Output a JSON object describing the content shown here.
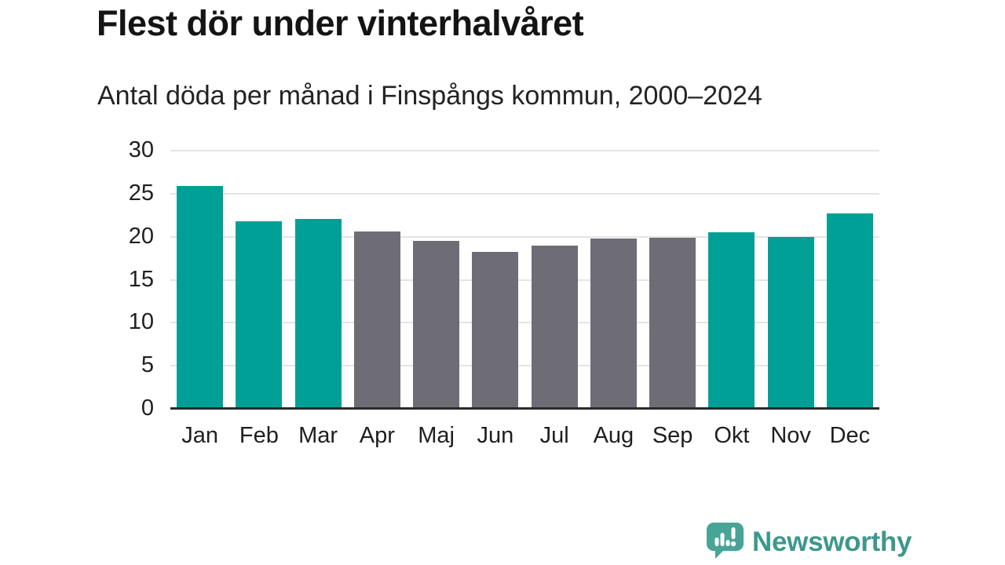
{
  "chart_data": {
    "type": "bar",
    "title": "Flest dör under vinterhalvåret",
    "subtitle": "Antal döda per månad i Finspångs kommun, 2000–2024",
    "categories": [
      "Jan",
      "Feb",
      "Mar",
      "Apr",
      "Maj",
      "Jun",
      "Jul",
      "Aug",
      "Sep",
      "Okt",
      "Nov",
      "Dec"
    ],
    "values": [
      25.9,
      21.8,
      22.1,
      20.6,
      19.5,
      18.2,
      19.0,
      19.8,
      19.9,
      20.5,
      20.0,
      22.7
    ],
    "highlighted": [
      true,
      true,
      true,
      false,
      false,
      false,
      false,
      false,
      false,
      true,
      true,
      true
    ],
    "colors": {
      "highlight": "#00a096",
      "base": "#6e6c74",
      "gridline": "#e4e4e4",
      "axis_line": "#2a2a2a",
      "tick_text": "#1f1f1f"
    },
    "yticks": [
      0,
      5,
      10,
      15,
      20,
      25,
      30
    ],
    "ylim": [
      0,
      30
    ],
    "xlabel": "",
    "ylabel": "",
    "grid": "horizontal",
    "legend": "none"
  },
  "branding": {
    "wordmark": "Newsworthy",
    "logo_color": "#47a497",
    "wordmark_color": "#3c988b"
  }
}
